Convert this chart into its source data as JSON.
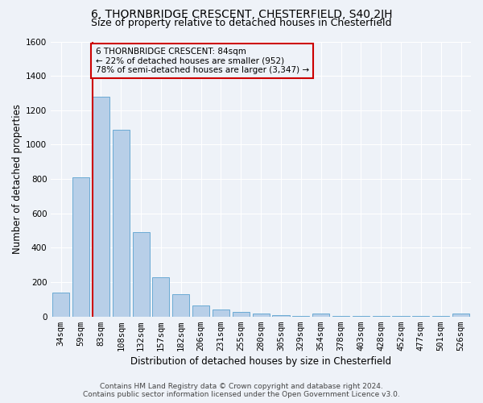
{
  "title1": "6, THORNBRIDGE CRESCENT, CHESTERFIELD, S40 2JH",
  "title2": "Size of property relative to detached houses in Chesterfield",
  "xlabel": "Distribution of detached houses by size in Chesterfield",
  "ylabel": "Number of detached properties",
  "footnote1": "Contains HM Land Registry data © Crown copyright and database right 2024.",
  "footnote2": "Contains public sector information licensed under the Open Government Licence v3.0.",
  "categories": [
    "34sqm",
    "59sqm",
    "83sqm",
    "108sqm",
    "132sqm",
    "157sqm",
    "182sqm",
    "206sqm",
    "231sqm",
    "255sqm",
    "280sqm",
    "305sqm",
    "329sqm",
    "354sqm",
    "378sqm",
    "403sqm",
    "428sqm",
    "452sqm",
    "477sqm",
    "501sqm",
    "526sqm"
  ],
  "values": [
    140,
    810,
    1280,
    1085,
    490,
    230,
    128,
    65,
    40,
    28,
    15,
    8,
    3,
    15,
    3,
    3,
    3,
    3,
    3,
    3,
    15
  ],
  "bar_color": "#b8cfe8",
  "bar_edge_color": "#6aaad4",
  "property_line_color": "#cc0000",
  "annotation_text": "6 THORNBRIDGE CRESCENT: 84sqm\n← 22% of detached houses are smaller (952)\n78% of semi-detached houses are larger (3,347) →",
  "annotation_box_color": "#cc0000",
  "ylim": [
    0,
    1600
  ],
  "yticks": [
    0,
    200,
    400,
    600,
    800,
    1000,
    1200,
    1400,
    1600
  ],
  "bg_color": "#eef2f8",
  "grid_color": "#ffffff",
  "title1_fontsize": 10,
  "title2_fontsize": 9,
  "xlabel_fontsize": 8.5,
  "ylabel_fontsize": 8.5,
  "tick_fontsize": 7.5,
  "annotation_fontsize": 7.5,
  "footnote_fontsize": 6.5
}
